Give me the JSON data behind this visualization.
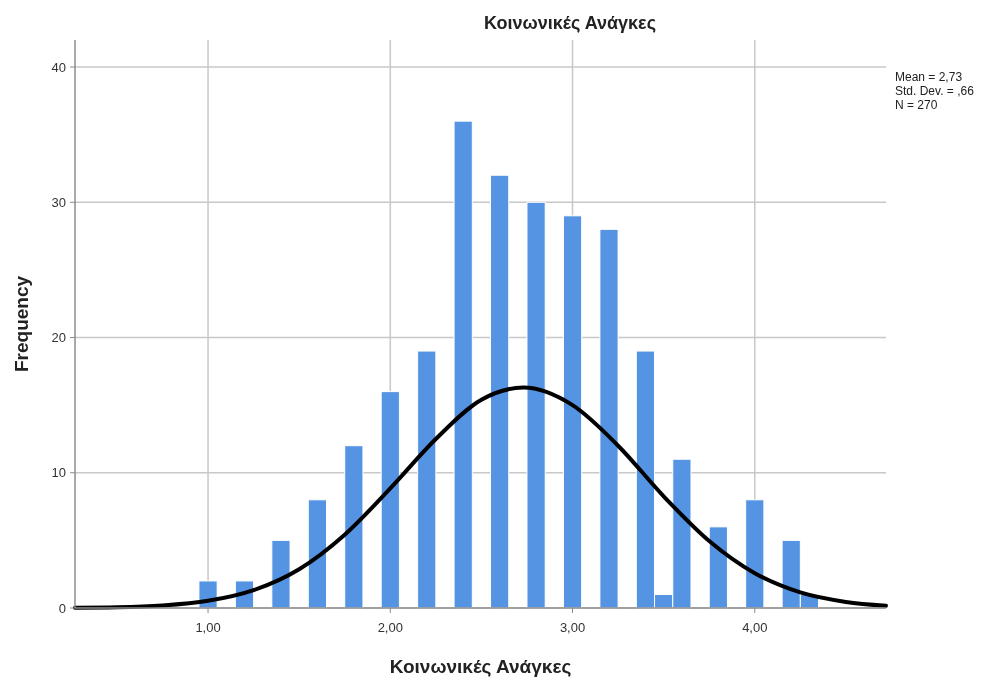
{
  "chart_data": {
    "type": "histogram",
    "title": "Κοινωνικές Ανάγκες",
    "xlabel": "Κοινωνικές Ανάγκες",
    "ylabel": "Frequency",
    "bins": [
      0.95,
      1.05,
      1.15,
      1.25,
      1.35,
      1.45,
      1.55,
      1.65,
      1.75,
      1.85,
      1.95,
      2.05,
      2.15,
      2.25,
      2.35,
      2.45,
      2.55,
      2.65,
      2.75,
      2.85,
      2.95,
      3.05,
      3.15,
      3.25,
      3.35,
      3.45,
      3.55,
      3.65,
      3.75,
      3.85,
      3.95,
      4.05,
      4.15,
      4.25,
      4.35
    ],
    "values": [
      2,
      0,
      2,
      0,
      5,
      0,
      8,
      0,
      12,
      0,
      16,
      0,
      19,
      0,
      36,
      0,
      32,
      0,
      30,
      0,
      29,
      0,
      28,
      0,
      19,
      1,
      11,
      0,
      6,
      0,
      8,
      0,
      5,
      1
    ],
    "color": "#5594e2",
    "series": [
      {
        "type": "line",
        "color": "#000000",
        "x": [
          0.27,
          0.5,
          0.75,
          1.0,
          1.25,
          1.5,
          1.75,
          2.0,
          2.25,
          2.5,
          2.73,
          3.0,
          3.25,
          3.5,
          3.75,
          4.0,
          4.25,
          4.5,
          4.72
        ],
        "values": [
          0.02,
          0.05,
          0.18,
          0.53,
          1.32,
          2.87,
          5.42,
          8.85,
          12.5,
          15.4,
          16.3,
          15.0,
          12.0,
          8.26,
          4.95,
          2.57,
          1.15,
          0.45,
          0.17
        ]
      }
    ],
    "xlim": [
      0.27,
      4.72
    ],
    "ylim": [
      0,
      42
    ],
    "xticks": [
      {
        "value": 1,
        "label": "1,00"
      },
      {
        "value": 2,
        "label": "2,00"
      },
      {
        "value": 3,
        "label": "3,00"
      },
      {
        "value": 4,
        "label": "4,00"
      }
    ],
    "yticks": [
      0,
      10,
      20,
      30,
      40
    ],
    "grid": true,
    "annotations": [
      "Mean = 2,73",
      "Std. Dev. = ,66",
      "N = 270"
    ]
  }
}
